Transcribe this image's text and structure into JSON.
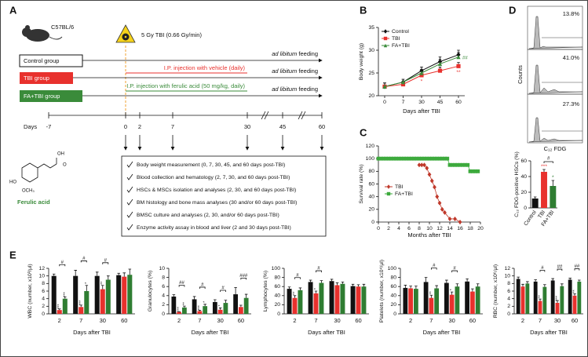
{
  "diagram": {
    "panel": "A",
    "strain": "C57BL/6",
    "tbi": "5 Gy TBI (0.66 Gy/min)",
    "groups": [
      "Control  group",
      "TBI  group",
      "FA+TBI group"
    ],
    "feeding_italic": "ad libitum",
    "feeding_rest": "feeding",
    "vehicle": "I.P. injection with vehicle (daily)",
    "ferulic": "I.P. injection with ferulic acid (50 mg/kg, daily)",
    "days_label": "Days",
    "days": [
      -7,
      0,
      2,
      7,
      30,
      45,
      60
    ],
    "compound": "Ferulic acid",
    "compound_groups": [
      "OH",
      "HO",
      "OCH₃",
      "O"
    ],
    "checklist": [
      "Body weight  measurement (0, 7, 30, 45, and 60 days post-TBI)",
      "Blood collection and hematology (2, 7, 30, and 60 days post-TBI)",
      "HSCs & MSCs isolation and analyses (2, 30, and 60 days post-TBI)",
      "BM histology and bone mass analyses (30 and/or 60 days post-TBI)",
      "BMSC culture and analyses (2, 30, and/or 60 days post-TBI)",
      "Enzyme activity assay in blood and liver (2 and 30 days post-TBI)"
    ]
  },
  "flow": {
    "panel": "D",
    "percentages": [
      "13.8%",
      "41.0%",
      "27.3%"
    ],
    "y_label": "Counts",
    "x_label": "C₁₂ FDG"
  },
  "chart_data": [
    {
      "type": "line",
      "panel": "B",
      "y_label": "Body weight (g)",
      "x_label": "Days after TBI",
      "categories": [
        0,
        7,
        30,
        45,
        60
      ],
      "ylim": [
        20,
        35
      ],
      "yticks": [
        20,
        25,
        30,
        35
      ],
      "legend": "upper left",
      "series": [
        {
          "name": "Control",
          "color": "#111111",
          "marker": "diamond",
          "values": [
            22,
            23,
            25.5,
            27.5,
            29
          ],
          "errors": [
            0.8,
            0.6,
            0.8,
            1,
            1
          ]
        },
        {
          "name": "TBI",
          "color": "#e8312d",
          "marker": "square",
          "values": [
            22,
            22.5,
            24.5,
            25.5,
            26.5
          ],
          "errors": [
            0.8,
            0.6,
            0.8,
            0.8,
            0.8
          ],
          "marks": [
            null,
            null,
            "*",
            null,
            "**"
          ]
        },
        {
          "name": "FA+TBI",
          "color": "#3a8b3a",
          "marker": "triangle",
          "values": [
            22,
            23,
            25,
            27,
            28.5
          ],
          "errors": [
            0.8,
            0.6,
            0.8,
            1,
            1
          ]
        }
      ],
      "hash": [
        null,
        null,
        null,
        null,
        "##"
      ]
    },
    {
      "type": "scatter-line",
      "panel": "C",
      "y_label": "Survival rate (%)",
      "x_label": "Months after TBI",
      "xlim": [
        0,
        20
      ],
      "xticks": [
        0,
        2,
        4,
        6,
        8,
        10,
        12,
        14,
        16,
        18,
        20
      ],
      "ylim": [
        0,
        120
      ],
      "yticks": [
        0,
        20,
        40,
        60,
        80,
        100,
        120
      ],
      "legend": "lower left",
      "series": [
        {
          "name": "TBI",
          "color": "#c0392b",
          "marker": "diamond",
          "x": [
            8,
            8.5,
            9,
            9.5,
            10,
            10.5,
            11,
            11.5,
            12,
            12.5,
            13,
            14,
            15,
            16
          ],
          "values": [
            90,
            90,
            90,
            85,
            75,
            65,
            55,
            40,
            30,
            20,
            15,
            5,
            5,
            0
          ]
        },
        {
          "name": "FA+TBI",
          "color": "#3daa3d",
          "marker": "square",
          "x": [
            0,
            0.5,
            1,
            1.5,
            2,
            2.5,
            3,
            3.5,
            4,
            4.5,
            5,
            5.5,
            6,
            6.5,
            7,
            7.5,
            8,
            8.5,
            9,
            9.5,
            10,
            10.5,
            11,
            11.5,
            12,
            12.5,
            13,
            13.5,
            14,
            14.5,
            15,
            15.5,
            16,
            16.5,
            17,
            17.5,
            18,
            18.5,
            19,
            19.5
          ],
          "values": [
            100,
            100,
            100,
            100,
            100,
            100,
            100,
            100,
            100,
            100,
            100,
            100,
            100,
            100,
            100,
            100,
            100,
            100,
            100,
            100,
            100,
            100,
            100,
            100,
            100,
            100,
            100,
            100,
            90,
            90,
            90,
            90,
            90,
            90,
            90,
            90,
            80,
            80,
            80,
            80
          ]
        }
      ]
    },
    {
      "type": "bar",
      "y_label": "C₁₂ FDG-positive HSCs (%)",
      "categories": [
        "Control",
        "TBI",
        "FA+TBI"
      ],
      "values": [
        12,
        46,
        28
      ],
      "errors": [
        2,
        3,
        7
      ],
      "colors": [
        "#111111",
        "#e8312d",
        "#2f7d32"
      ],
      "ylim": [
        0,
        60
      ],
      "yticks": [
        0,
        20,
        40,
        60
      ],
      "marks": [
        null,
        "***",
        "*"
      ],
      "hash": "#"
    },
    {
      "type": "grouped-bar",
      "panel": "E",
      "y_label": "WBC (number, x10³/μl)",
      "x_label": "Days after TBI",
      "categories": [
        2,
        7,
        30,
        60
      ],
      "ylim": [
        0,
        12
      ],
      "yticks": [
        0,
        2,
        4,
        6,
        8,
        10,
        12
      ],
      "series": [
        {
          "color": "#111111",
          "values": [
            10,
            10,
            10,
            10.2
          ],
          "errors": [
            0.5,
            1.5,
            1,
            0.5
          ]
        },
        {
          "color": "#e8312d",
          "values": [
            1,
            1.8,
            6.5,
            9.8
          ],
          "errors": [
            0.3,
            0.5,
            1,
            1
          ],
          "marks": [
            "***",
            "***",
            "**",
            null
          ]
        },
        {
          "color": "#2f7d32",
          "values": [
            4,
            6,
            9,
            10.3
          ],
          "errors": [
            0.5,
            1.5,
            1,
            1.5
          ],
          "marks": [
            "***",
            "*",
            null,
            null
          ]
        }
      ],
      "hash": [
        "#",
        "#",
        "#",
        null
      ]
    },
    {
      "type": "grouped-bar",
      "y_label": "Granulocytes (%)",
      "x_label": "Days after TBI",
      "categories": [
        2,
        7,
        30,
        60
      ],
      "ylim": [
        0,
        10
      ],
      "yticks": [
        0,
        2,
        4,
        6,
        8,
        10
      ],
      "series": [
        {
          "color": "#111111",
          "values": [
            3.8,
            3.2,
            2.6,
            4.3
          ],
          "errors": [
            0.4,
            0.6,
            0.5,
            1.5
          ]
        },
        {
          "color": "#e8312d",
          "values": [
            0.4,
            0.6,
            0.9,
            1.5
          ],
          "errors": [
            0.1,
            0.2,
            0.4,
            0.4
          ],
          "marks": [
            "***",
            "***",
            "*",
            null
          ]
        },
        {
          "color": "#2f7d32",
          "values": [
            1.4,
            1.7,
            2.4,
            3.5
          ],
          "errors": [
            0.3,
            0.4,
            0.6,
            0.8
          ],
          "marks": [
            "**",
            "*",
            null,
            null
          ]
        }
      ],
      "hash": [
        "##",
        "#",
        "#",
        "###"
      ]
    },
    {
      "type": "grouped-bar",
      "y_label": "Lymphocytes (%)",
      "x_label": "Days after TBI",
      "categories": [
        2,
        7,
        30,
        60
      ],
      "ylim": [
        0,
        100
      ],
      "yticks": [
        0,
        20,
        40,
        60,
        80,
        100
      ],
      "series": [
        {
          "color": "#111111",
          "values": [
            55,
            70,
            72,
            61
          ],
          "errors": [
            4,
            4,
            4,
            4
          ]
        },
        {
          "color": "#e8312d",
          "values": [
            35,
            45,
            63,
            60
          ],
          "errors": [
            5,
            5,
            5,
            4
          ],
          "marks": [
            "**",
            "*",
            null,
            null
          ]
        },
        {
          "color": "#2f7d32",
          "values": [
            52,
            68,
            66,
            60
          ],
          "errors": [
            5,
            5,
            4,
            5
          ]
        }
      ],
      "hash": [
        "#",
        "#",
        null,
        null
      ]
    },
    {
      "type": "grouped-bar",
      "y_label": "Platelets (number, x10⁴/μl)",
      "x_label": "Days after TBI",
      "categories": [
        2,
        7,
        30,
        60
      ],
      "ylim": [
        0,
        100
      ],
      "yticks": [
        0,
        20,
        40,
        60,
        80,
        100
      ],
      "series": [
        {
          "color": "#111111",
          "values": [
            57,
            70,
            68,
            71
          ],
          "errors": [
            6,
            10,
            6,
            6
          ]
        },
        {
          "color": "#e8312d",
          "values": [
            56,
            35,
            42,
            49
          ],
          "errors": [
            5,
            6,
            6,
            6
          ],
          "marks": [
            null,
            "**",
            "*",
            null
          ]
        },
        {
          "color": "#2f7d32",
          "values": [
            55,
            56,
            60,
            60
          ],
          "errors": [
            6,
            6,
            6,
            6
          ]
        }
      ],
      "hash": [
        null,
        "#",
        "#",
        null
      ]
    },
    {
      "type": "grouped-bar",
      "y_label": "RBC (number, x10⁶/μl)",
      "x_label": "Days after TBI",
      "categories": [
        2,
        7,
        30,
        60
      ],
      "ylim": [
        0,
        12
      ],
      "yticks": [
        0,
        2,
        4,
        6,
        8,
        10,
        12
      ],
      "series": [
        {
          "color": "#111111",
          "values": [
            9.2,
            8.5,
            8.8,
            9
          ],
          "errors": [
            0.5,
            0.5,
            0.5,
            0.4
          ]
        },
        {
          "color": "#e8312d",
          "values": [
            7.2,
            3.4,
            2.9,
            4.8
          ],
          "errors": [
            0.6,
            0.5,
            0.6,
            0.5
          ],
          "marks": [
            null,
            "**",
            "***",
            "**"
          ]
        },
        {
          "color": "#2f7d32",
          "values": [
            8,
            7.1,
            7.3,
            8.5
          ],
          "errors": [
            0.5,
            0.6,
            0.6,
            0.4
          ]
        }
      ],
      "hash": [
        null,
        "#",
        "##",
        "##"
      ]
    }
  ]
}
